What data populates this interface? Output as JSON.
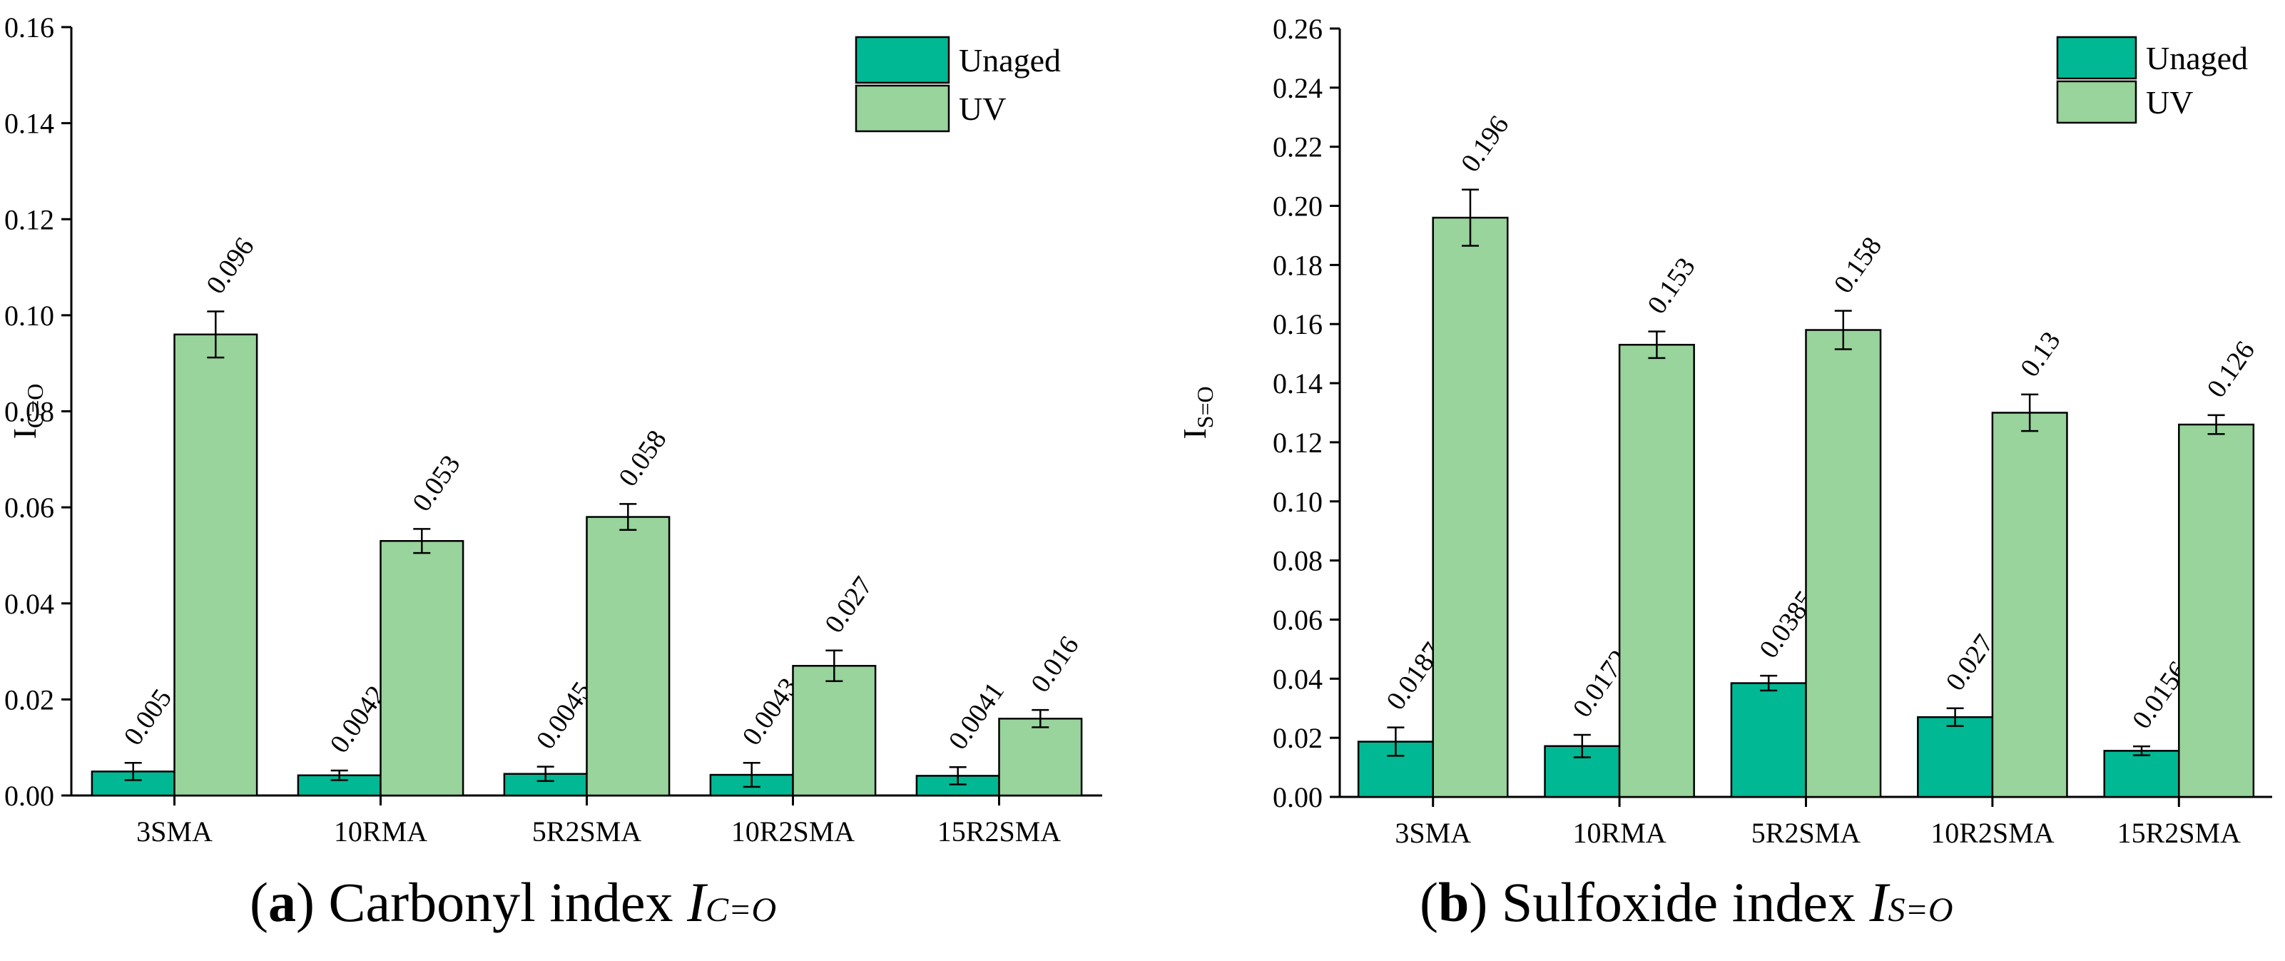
{
  "colors": {
    "unaged": "#00b894",
    "uv": "#98d49b",
    "axis": "#000000"
  },
  "chart_data": [
    {
      "type": "bar",
      "title": "Carbonyl index",
      "ylabel": "I",
      "ylabel_sub": "C=O",
      "ylim": [
        0,
        0.16
      ],
      "ytick_step": 0.02,
      "ytick_labels": [
        "0.00",
        "0.02",
        "0.04",
        "0.06",
        "0.08",
        "0.10",
        "0.12",
        "0.14",
        "0.16"
      ],
      "categories": [
        "3SMA",
        "10RMA",
        "5R2SMA",
        "10R2SMA",
        "15R2SMA"
      ],
      "legend_position": "top-right",
      "series": [
        {
          "name": "Unaged",
          "values": [
            0.005,
            0.0042,
            0.0045,
            0.0043,
            0.0041
          ],
          "labels": [
            "0.005",
            "0.0042",
            "0.0045",
            "0.0043",
            "0.0041"
          ],
          "errors": [
            0.0018,
            0.001,
            0.0015,
            0.0025,
            0.0018
          ]
        },
        {
          "name": "UV",
          "values": [
            0.096,
            0.053,
            0.058,
            0.027,
            0.016
          ],
          "labels": [
            "0.096",
            "0.053",
            "0.058",
            "0.027",
            "0.016"
          ],
          "errors": [
            0.0048,
            0.0025,
            0.0027,
            0.0032,
            0.0018
          ]
        }
      ],
      "caption": {
        "tag": "a",
        "text": "Carbonyl index",
        "symbol": "I",
        "symbol_sub": "C=O"
      }
    },
    {
      "type": "bar",
      "title": "Sulfoxide index",
      "ylabel": "I",
      "ylabel_sub": "S=O",
      "ylim": [
        0,
        0.26
      ],
      "ytick_step": 0.02,
      "ytick_labels": [
        "0.00",
        "0.02",
        "0.04",
        "0.06",
        "0.08",
        "0.10",
        "0.12",
        "0.14",
        "0.16",
        "0.18",
        "0.20",
        "0.22",
        "0.24",
        "0.26"
      ],
      "categories": [
        "3SMA",
        "10RMA",
        "5R2SMA",
        "10R2SMA",
        "15R2SMA"
      ],
      "legend_position": "top-right",
      "series": [
        {
          "name": "Unaged",
          "values": [
            0.0187,
            0.0172,
            0.0385,
            0.027,
            0.0156
          ],
          "labels": [
            "0.0187",
            "0.0172",
            "0.0385",
            "0.027",
            "0.0156"
          ],
          "errors": [
            0.0048,
            0.0038,
            0.0025,
            0.003,
            0.0015
          ]
        },
        {
          "name": "UV",
          "values": [
            0.196,
            0.153,
            0.158,
            0.13,
            0.126
          ],
          "labels": [
            "0.196",
            "0.153",
            "0.158",
            "0.13",
            "0.126"
          ],
          "errors": [
            0.0095,
            0.0045,
            0.0065,
            0.0062,
            0.0032
          ]
        }
      ],
      "caption": {
        "tag": "b",
        "text": "Sulfoxide index",
        "symbol": "I",
        "symbol_sub": "S=O"
      }
    }
  ]
}
